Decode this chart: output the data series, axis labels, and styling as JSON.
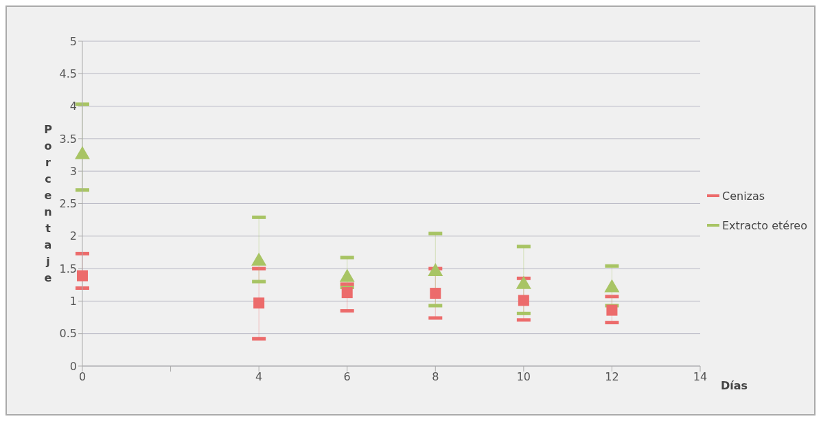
{
  "chart_data": {
    "type": "scatter",
    "xlabel": "Días",
    "ylabel": "Porcentaje",
    "x": [
      0,
      4,
      6,
      8,
      10,
      12
    ],
    "series": [
      {
        "name": "Cenizas",
        "color": "#ec6b6b",
        "marker": "square",
        "values": [
          1.39,
          0.97,
          1.13,
          1.12,
          1.01,
          0.86
        ],
        "errors": [
          [
            1.2,
            1.73
          ],
          [
            0.42,
            1.5
          ],
          [
            0.85,
            1.26
          ],
          [
            0.74,
            1.5
          ],
          [
            0.71,
            1.35
          ],
          [
            0.67,
            1.07
          ]
        ]
      },
      {
        "name": "Extracto etéreo",
        "color": "#a8c464",
        "marker": "triangle",
        "values": [
          3.27,
          1.63,
          1.38,
          1.47,
          1.27,
          1.22
        ],
        "errors": [
          [
            2.71,
            4.03
          ],
          [
            1.3,
            2.29
          ],
          [
            1.21,
            1.67
          ],
          [
            0.93,
            2.04
          ],
          [
            0.81,
            1.84
          ],
          [
            0.93,
            1.54
          ]
        ]
      }
    ],
    "xlim": [
      0,
      14
    ],
    "xticks": [
      0,
      {
        "value": 2,
        "label": null
      },
      4,
      6,
      8,
      10,
      12,
      14
    ],
    "ylim": [
      0,
      5
    ],
    "yticks": [
      0,
      0.5,
      1,
      1.5,
      2,
      2.5,
      3,
      3.5,
      4,
      4.5,
      5
    ],
    "grid": "y",
    "legend": "right"
  }
}
